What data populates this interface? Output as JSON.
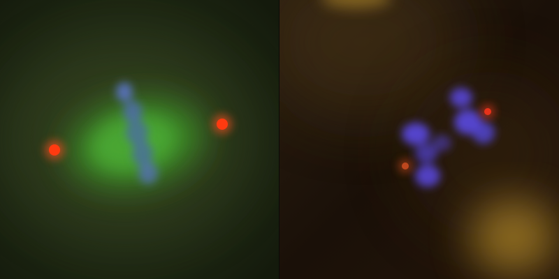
{
  "figure": {
    "panels": [
      {
        "id": "left",
        "background": "#223016",
        "spindle_color": "#3fa02a",
        "chromatin_color": "#4a6aa8",
        "centrosome_color": "#ff3a10"
      },
      {
        "id": "right",
        "background": "#1e1208",
        "chromatin_color": "#5a48e0",
        "centrosome_color": "#e8321a",
        "cell_color": "#a07a28"
      }
    ]
  }
}
